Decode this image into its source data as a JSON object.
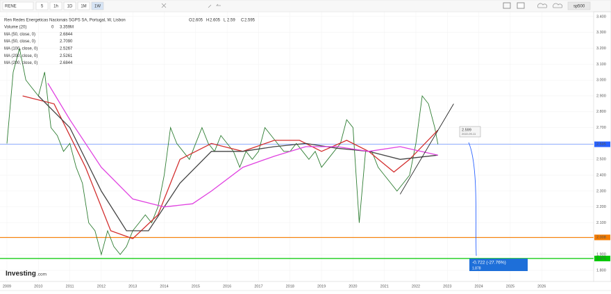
{
  "toolbar": {
    "symbol": "RENE",
    "intervals": [
      "5",
      "1h",
      "1D",
      "1M",
      "1W"
    ],
    "active": "1W",
    "compare": "sp500"
  },
  "chart_data": {
    "type": "line",
    "title": "Ren Redes Energeticas Nacionais SGPS SA, Portugal, W, Lisbon",
    "ohlc": {
      "O": 2.605,
      "H": 2.605,
      "L": 2.59,
      "C": 2.595,
      "labels": {
        "O": "O",
        "H": "H",
        "L": "L",
        "C": "C"
      }
    },
    "indicators": [
      {
        "name": "Volume (20)",
        "extra": "0",
        "value_label": "3.359M",
        "color": "#333333"
      },
      {
        "name": "MA (50, close, 0)",
        "value_label": "2.6844",
        "color": "#d32f2f"
      },
      {
        "name": "MA (50, close, 0)",
        "value_label": "2.7090",
        "color": "#1e50c8"
      },
      {
        "name": "MA (100, close, 0)",
        "value_label": "2.5267",
        "color": "#222222"
      },
      {
        "name": "MA (200, close, 0)",
        "value_label": "2.5261",
        "color": "#e040e0"
      },
      {
        "name": "MA (200, close, 0)",
        "value_label": "2.6844",
        "color": "#00c800"
      }
    ],
    "xlim": [
      2008.78,
      2027.65
    ],
    "xticks": [
      2009,
      2010,
      2011,
      2012,
      2013,
      2014,
      2015,
      2016,
      2017,
      2018,
      2019,
      2020,
      2021,
      2022,
      2023,
      2024,
      2025,
      2026
    ],
    "ylim": [
      1.73,
      3.43
    ],
    "yticks": [
      {
        "value": 3.4,
        "label": "3.400"
      },
      {
        "value": 3.3,
        "label": "3.300"
      },
      {
        "value": 3.2,
        "label": "3.200"
      },
      {
        "value": 3.1,
        "label": "3.100"
      },
      {
        "value": 3.0,
        "label": "3.000"
      },
      {
        "value": 2.9,
        "label": "2.900"
      },
      {
        "value": 2.8,
        "label": "2.800"
      },
      {
        "value": 2.7,
        "label": "2.700"
      },
      {
        "value": 2.6,
        "label": "2.600"
      },
      {
        "value": 2.5,
        "label": "2.500"
      },
      {
        "value": 2.4,
        "label": "2.400"
      },
      {
        "value": 2.3,
        "label": "2.300"
      },
      {
        "value": 2.2,
        "label": "2.200"
      },
      {
        "value": 2.1,
        "label": "2.100"
      },
      {
        "value": 2.0,
        "label": "2.000"
      },
      {
        "value": 1.9,
        "label": "1.900"
      },
      {
        "value": 1.8,
        "label": "1.800"
      }
    ],
    "series": [
      {
        "name": "Close",
        "color": "#2e7d32",
        "x": [
          2009.0,
          2009.2,
          2009.4,
          2009.6,
          2009.8,
          2010.0,
          2010.2,
          2010.4,
          2010.6,
          2010.8,
          2011.0,
          2011.2,
          2011.4,
          2011.6,
          2011.8,
          2012.0,
          2012.2,
          2012.4,
          2012.6,
          2012.8,
          2013.0,
          2013.2,
          2013.4,
          2013.6,
          2013.8,
          2014.0,
          2014.2,
          2014.4,
          2014.6,
          2014.8,
          2015.0,
          2015.2,
          2015.4,
          2015.6,
          2015.8,
          2016.0,
          2016.2,
          2016.4,
          2016.6,
          2016.8,
          2017.0,
          2017.2,
          2017.4,
          2017.6,
          2017.8,
          2018.0,
          2018.2,
          2018.4,
          2018.6,
          2018.8,
          2019.0,
          2019.2,
          2019.4,
          2019.6,
          2019.8,
          2020.0,
          2020.2,
          2020.4,
          2020.6,
          2020.8,
          2021.0,
          2021.2,
          2021.4,
          2021.6,
          2021.8,
          2022.0,
          2022.2,
          2022.4,
          2022.6,
          2022.7
        ],
        "values": [
          2.6,
          3.05,
          3.2,
          3.0,
          2.95,
          2.9,
          3.05,
          2.7,
          2.65,
          2.55,
          2.6,
          2.45,
          2.35,
          2.1,
          2.05,
          1.9,
          2.05,
          1.95,
          1.9,
          1.95,
          2.05,
          2.1,
          2.15,
          2.1,
          2.2,
          2.4,
          2.7,
          2.6,
          2.55,
          2.5,
          2.6,
          2.7,
          2.6,
          2.55,
          2.65,
          2.6,
          2.55,
          2.45,
          2.55,
          2.5,
          2.55,
          2.7,
          2.65,
          2.6,
          2.55,
          2.55,
          2.6,
          2.55,
          2.5,
          2.55,
          2.45,
          2.5,
          2.55,
          2.6,
          2.75,
          2.7,
          2.1,
          2.55,
          2.55,
          2.45,
          2.4,
          2.35,
          2.3,
          2.35,
          2.4,
          2.6,
          2.9,
          2.85,
          2.7,
          2.595
        ]
      },
      {
        "name": "MA (50, close, 0)",
        "color": "#d32f2f",
        "x": [
          2009.5,
          2010.5,
          2011.5,
          2012.3,
          2013.0,
          2013.8,
          2014.5,
          2015.5,
          2016.5,
          2017.5,
          2018.3,
          2019.0,
          2019.8,
          2020.5,
          2021.3,
          2021.8,
          2022.7
        ],
        "values": [
          2.9,
          2.85,
          2.45,
          2.05,
          2.0,
          2.15,
          2.5,
          2.6,
          2.55,
          2.62,
          2.62,
          2.55,
          2.62,
          2.55,
          2.42,
          2.5,
          2.6844
        ]
      },
      {
        "name": "MA (100, close, 0)",
        "color": "#444444",
        "x": [
          2010.0,
          2011.0,
          2012.0,
          2012.8,
          2013.5,
          2014.5,
          2015.5,
          2016.5,
          2017.5,
          2018.5,
          2019.5,
          2020.5,
          2021.5,
          2022.7
        ],
        "values": [
          2.9,
          2.7,
          2.3,
          2.05,
          2.05,
          2.35,
          2.55,
          2.55,
          2.58,
          2.6,
          2.57,
          2.55,
          2.5,
          2.5267
        ]
      },
      {
        "name": "MA (200, close, 0)",
        "color": "#e040e0",
        "x": [
          2010.3,
          2011.0,
          2012.0,
          2013.0,
          2014.0,
          2014.9,
          2015.5,
          2016.5,
          2017.5,
          2018.5,
          2019.5,
          2020.5,
          2021.5,
          2022.7
        ],
        "values": [
          2.98,
          2.75,
          2.45,
          2.25,
          2.2,
          2.22,
          2.3,
          2.45,
          2.52,
          2.58,
          2.58,
          2.55,
          2.58,
          2.5261
        ]
      }
    ],
    "hlines": [
      {
        "value": 2.595,
        "label": "2.595",
        "color": "#2962ff"
      },
      {
        "value": 2.008,
        "label": "2.008",
        "color": "#f57c00"
      },
      {
        "value": 1.875,
        "label": "1.875",
        "color": "#00c800"
      }
    ],
    "trendline": {
      "x": [
        2021.5,
        2023.2
      ],
      "values": [
        2.28,
        2.85
      ]
    },
    "annotation": {
      "price_label": "2.599",
      "date": "2022-09-11"
    },
    "measure": {
      "change": "-0.722 (-27.76%)",
      "target": "1.878"
    },
    "logo": {
      "brand": "Investing",
      "suffix": ".com"
    }
  }
}
